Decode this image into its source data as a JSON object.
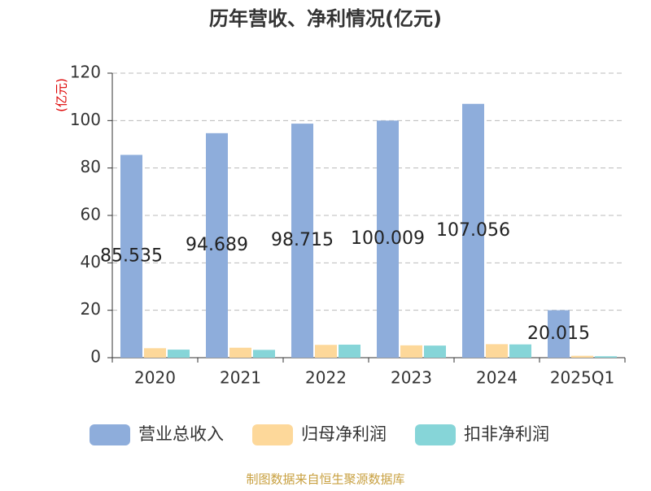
{
  "chart_data": {
    "type": "bar",
    "title": "历年营收、净利情况(亿元)",
    "y_label": "(亿元)",
    "categories": [
      "2020",
      "2021",
      "2022",
      "2023",
      "2024",
      "2025Q1"
    ],
    "series": [
      {
        "name": "营业总收入",
        "color": "#8eaddb",
        "values": [
          85.535,
          94.689,
          98.715,
          100.009,
          107.056,
          20.015
        ],
        "show_labels": true
      },
      {
        "name": "归母净利润",
        "color": "#fdd89a",
        "values": [
          4.0,
          4.2,
          5.4,
          5.2,
          5.7,
          0.8
        ],
        "show_labels": false
      },
      {
        "name": "扣非净利润",
        "color": "#86d5d8",
        "values": [
          3.4,
          3.3,
          5.5,
          5.1,
          5.6,
          0.6
        ],
        "show_labels": false
      }
    ],
    "ylim": [
      0,
      120
    ],
    "yticks": [
      0,
      20,
      40,
      60,
      80,
      100,
      120
    ],
    "grid": true,
    "source": "制图数据来自恒生聚源数据库"
  }
}
